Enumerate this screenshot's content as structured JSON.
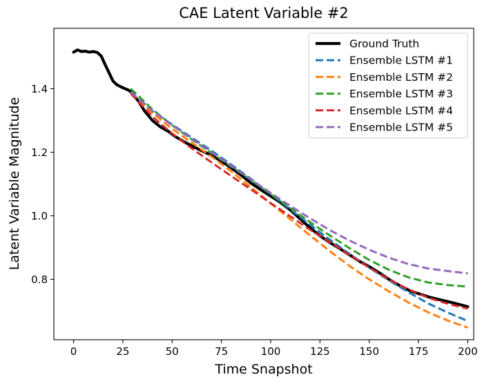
{
  "chart_data": {
    "type": "line",
    "title": "CAE Latent Variable #2",
    "xlabel": "Time Snapshot",
    "ylabel": "Latent Variable Magnitude",
    "xlim": [
      -10,
      203
    ],
    "ylim": [
      0.61,
      1.59
    ],
    "xticks": [
      0,
      25,
      50,
      75,
      100,
      125,
      150,
      175,
      200
    ],
    "xtick_labels": [
      "0",
      "25",
      "50",
      "75",
      "100",
      "125",
      "150",
      "175",
      "200"
    ],
    "yticks": [
      0.8,
      1.0,
      1.2,
      1.4
    ],
    "ytick_labels": [
      "0.8",
      "1.0",
      "1.2",
      "1.4"
    ],
    "grid": false,
    "legend_position": "top-right",
    "series": [
      {
        "name": "Ground Truth",
        "color": "#000000",
        "style": "solid",
        "x": [
          0,
          2,
          4,
          6,
          8,
          10,
          12,
          14,
          16,
          18,
          20,
          22,
          25,
          28,
          30,
          33,
          36,
          40,
          44,
          48,
          52,
          56,
          60,
          64,
          68,
          72,
          76,
          80,
          85,
          90,
          95,
          100,
          105,
          110,
          115,
          120,
          125,
          130,
          135,
          140,
          145,
          150,
          155,
          160,
          165,
          170,
          175,
          180,
          185,
          190,
          195,
          200
        ],
        "y": [
          1.515,
          1.522,
          1.517,
          1.518,
          1.515,
          1.517,
          1.514,
          1.503,
          1.476,
          1.45,
          1.424,
          1.412,
          1.403,
          1.395,
          1.385,
          1.36,
          1.33,
          1.3,
          1.28,
          1.266,
          1.248,
          1.233,
          1.22,
          1.208,
          1.196,
          1.183,
          1.168,
          1.151,
          1.128,
          1.103,
          1.082,
          1.062,
          1.042,
          1.018,
          0.99,
          0.962,
          0.937,
          0.916,
          0.897,
          0.877,
          0.857,
          0.84,
          0.821,
          0.8,
          0.782,
          0.766,
          0.755,
          0.745,
          0.737,
          0.73,
          0.722,
          0.714
        ]
      },
      {
        "name": "Ensemble LSTM #1",
        "color": "#1f77b4",
        "style": "dashed",
        "x": [
          29,
          35,
          40,
          50,
          60,
          70,
          80,
          90,
          100,
          110,
          120,
          130,
          140,
          150,
          160,
          170,
          180,
          190,
          200
        ],
        "y": [
          1.385,
          1.358,
          1.33,
          1.287,
          1.246,
          1.205,
          1.161,
          1.116,
          1.068,
          1.02,
          0.972,
          0.925,
          0.88,
          0.837,
          0.797,
          0.759,
          0.724,
          0.695,
          0.669
        ]
      },
      {
        "name": "Ensemble LSTM #2",
        "color": "#ff7f0e",
        "style": "dashed",
        "x": [
          29,
          35,
          40,
          50,
          60,
          70,
          80,
          90,
          100,
          110,
          120,
          130,
          140,
          150,
          160,
          170,
          180,
          190,
          200
        ],
        "y": [
          1.385,
          1.353,
          1.323,
          1.274,
          1.23,
          1.186,
          1.14,
          1.09,
          1.039,
          0.989,
          0.938,
          0.889,
          0.842,
          0.8,
          0.762,
          0.727,
          0.696,
          0.67,
          0.648
        ]
      },
      {
        "name": "Ensemble LSTM #3",
        "color": "#2ca02c",
        "style": "dashed",
        "x": [
          29,
          35,
          40,
          50,
          60,
          70,
          80,
          90,
          100,
          110,
          120,
          130,
          140,
          150,
          160,
          170,
          180,
          190,
          200
        ],
        "y": [
          1.4,
          1.365,
          1.335,
          1.285,
          1.24,
          1.198,
          1.155,
          1.113,
          1.068,
          1.024,
          0.98,
          0.938,
          0.898,
          0.861,
          0.83,
          0.806,
          0.79,
          0.782,
          0.777
        ]
      },
      {
        "name": "Ensemble LSTM #4",
        "color": "#d62728",
        "style": "dashed",
        "x": [
          29,
          35,
          40,
          50,
          60,
          70,
          80,
          90,
          100,
          110,
          120,
          130,
          140,
          150,
          160,
          170,
          180,
          190,
          200
        ],
        "y": [
          1.385,
          1.345,
          1.312,
          1.259,
          1.212,
          1.168,
          1.125,
          1.083,
          1.04,
          0.998,
          0.956,
          0.917,
          0.877,
          0.837,
          0.8,
          0.768,
          0.742,
          0.723,
          0.708
        ]
      },
      {
        "name": "Ensemble LSTM #5",
        "color": "#9467bd",
        "style": "dashed",
        "x": [
          29,
          35,
          40,
          50,
          60,
          70,
          80,
          90,
          100,
          110,
          120,
          130,
          140,
          150,
          160,
          170,
          180,
          190,
          200
        ],
        "y": [
          1.39,
          1.357,
          1.33,
          1.285,
          1.243,
          1.2,
          1.157,
          1.114,
          1.072,
          1.031,
          0.992,
          0.955,
          0.922,
          0.893,
          0.868,
          0.848,
          0.834,
          0.826,
          0.819
        ]
      }
    ]
  }
}
